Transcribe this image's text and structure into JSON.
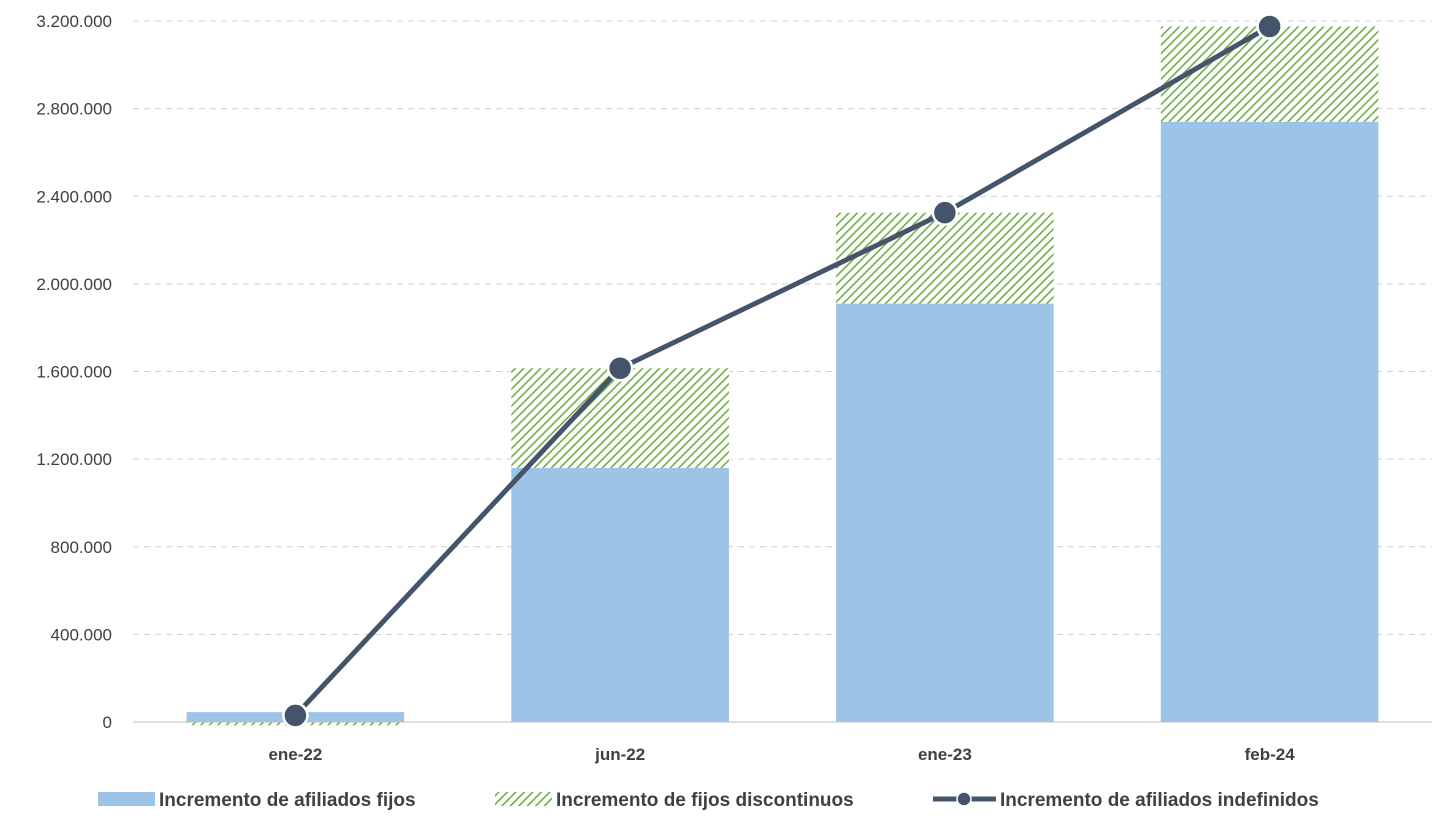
{
  "chart_data": {
    "type": "bar",
    "stacked": true,
    "categories": [
      "ene-22",
      "jun-22",
      "ene-23",
      "feb-24"
    ],
    "series": [
      {
        "name": "Incremento de afiliados fijos",
        "type": "bar",
        "values": [
          45000,
          1160000,
          1910000,
          2740000
        ],
        "color": "#9DC3E6"
      },
      {
        "name": "Incremento de fijos discontinuos",
        "type": "bar",
        "pattern": "diagonal-hatch",
        "values": [
          -15000,
          455000,
          415000,
          435000
        ],
        "color": "#70AD47"
      },
      {
        "name": "Incremento de afiliados indefinidos",
        "type": "line",
        "marker": "circle",
        "values": [
          30000,
          1615000,
          2325000,
          3175000
        ],
        "color": "#44546A"
      }
    ],
    "ylim": [
      0,
      3200000
    ],
    "yticks": [
      0,
      400000,
      800000,
      1200000,
      1600000,
      2000000,
      2400000,
      2800000,
      3200000
    ],
    "ytick_labels": [
      "0",
      "400.000",
      "800.000",
      "1.200.000",
      "1.600.000",
      "2.000.000",
      "2.400.000",
      "2.800.000",
      "3.200.000"
    ],
    "grid": true,
    "legend_position": "bottom",
    "title": "",
    "xlabel": "",
    "ylabel": ""
  }
}
